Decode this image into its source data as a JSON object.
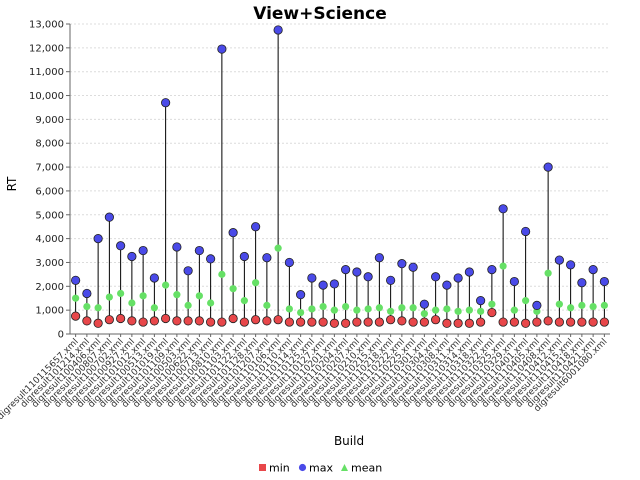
{
  "chart_data": {
    "type": "scatter",
    "title": "View+Science",
    "xlabel": "Build",
    "ylabel": "RT",
    "ylim": [
      0,
      13000
    ],
    "yticks": [
      0,
      1000,
      2000,
      3000,
      4000,
      5000,
      6000,
      7000,
      8000,
      9000,
      10000,
      11000,
      12000,
      13000
    ],
    "ytick_labels": [
      "0",
      "1,000",
      "2,000",
      "3,000",
      "4,000",
      "5,000",
      "6,000",
      "7,000",
      "8,000",
      "9,000",
      "10,000",
      "11,000",
      "12,000",
      "13,000"
    ],
    "grid": true,
    "legend_position": "bottom",
    "categories": [
      "digresult110115657.xml",
      "digresult101214.xml",
      "digresult100406.xml",
      "digresult100807.xml",
      "digresult100702.xml",
      "digresult100927.xml",
      "digresult101012.xml",
      "digresult100513.xml",
      "digresult101019.xml",
      "digresult101109.xml",
      "digresult100503.xml",
      "digresult100622.xml",
      "digresult100713.xml",
      "digresult100810.xml",
      "digresult101103.xml",
      "digresult101122.xml",
      "digresult101128.xml",
      "digresult101207.xml",
      "digresult110106.xml",
      "digresult110110.xml",
      "digresult110114.xml",
      "digresult110125.xml",
      "digresult110127.xml",
      "digresult110201.xml",
      "digresult110204.xml",
      "digresult110207.xml",
      "digresult110210.xml",
      "digresult110215.xml",
      "digresult110218.xml",
      "digresult110222.xml",
      "digresult110225.xml",
      "digresult110301.xml",
      "digresult110304.xml",
      "digresult110308.xml",
      "digresult110311.xml",
      "digresult110314.xml",
      "digresult110318.xml",
      "digresult110322.xml",
      "digresult110325.xml",
      "digresult110329.xml",
      "digresult110401.xml",
      "digresult110405.xml",
      "digresult110408.xml",
      "digresult110412.xml",
      "digresult110415.xml",
      "digresult110418.xml",
      "digresult110421.xml",
      "digresult6001080.xml"
    ],
    "series": [
      {
        "name": "min",
        "color": "#e8474a",
        "values": [
          750,
          550,
          450,
          600,
          650,
          550,
          500,
          550,
          650,
          550,
          550,
          550,
          500,
          500,
          650,
          500,
          600,
          550,
          600,
          500,
          500,
          500,
          500,
          450,
          450,
          500,
          500,
          500,
          600,
          550,
          500,
          500,
          600,
          450,
          450,
          450,
          500,
          900,
          500,
          500,
          450,
          500,
          550,
          500,
          500,
          500,
          500,
          500
        ]
      },
      {
        "name": "max",
        "color": "#4a4ae8",
        "values": [
          2250,
          1700,
          4000,
          4900,
          3700,
          3250,
          3500,
          2350,
          9700,
          3650,
          2650,
          3500,
          3150,
          11950,
          4250,
          3250,
          4500,
          3200,
          12750,
          3000,
          1650,
          2350,
          2050,
          2100,
          2700,
          2600,
          2400,
          3200,
          2250,
          2950,
          2800,
          1250,
          2400,
          2050,
          2350,
          2600,
          1400,
          2700,
          5250,
          2200,
          4300,
          1200,
          7000,
          3100,
          2900,
          2150,
          2700,
          2200
        ]
      },
      {
        "name": "mean",
        "color": "#66e066",
        "values": [
          1500,
          1150,
          1100,
          1550,
          1700,
          1300,
          1600,
          1100,
          2050,
          1650,
          1200,
          1600,
          1300,
          2500,
          1900,
          1400,
          2150,
          1200,
          3600,
          1050,
          900,
          1050,
          1150,
          1000,
          1150,
          1000,
          1050,
          1100,
          950,
          1100,
          1100,
          850,
          1000,
          1050,
          950,
          1000,
          950,
          1250,
          2850,
          1000,
          1400,
          950,
          2550,
          1250,
          1100,
          1200,
          1150,
          1200
        ]
      }
    ]
  }
}
